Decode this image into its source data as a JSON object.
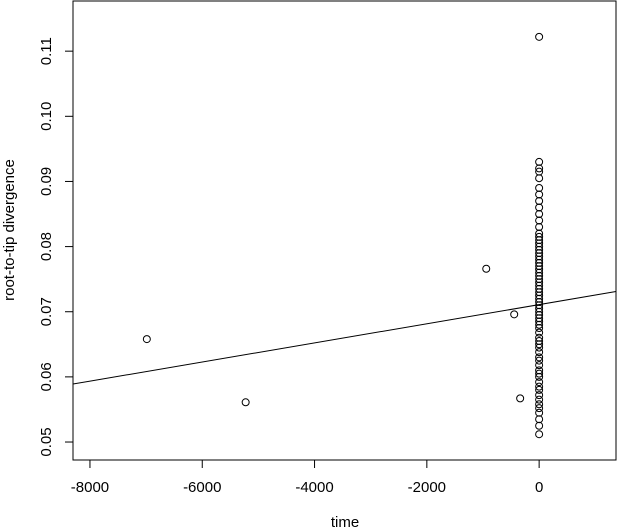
{
  "chart_data": {
    "type": "scatter",
    "x_label": "time",
    "y_label": "root-to-tip divergence",
    "xlim": [
      -8302,
      1369
    ],
    "ylim": [
      0.04724,
      0.1177
    ],
    "xticks": [
      -8000,
      -6000,
      -4000,
      -2000,
      0
    ],
    "yticks": [
      0.05,
      0.06,
      0.07,
      0.08,
      0.09,
      {
        "value": 0.1,
        "label": "0.10"
      },
      0.11
    ],
    "color": "#000000",
    "x": [
      -6987,
      -5227,
      -942,
      -444,
      -338,
      0,
      0,
      0,
      0,
      0,
      0,
      0,
      0,
      0,
      0,
      0,
      0,
      0,
      0,
      0,
      0,
      0,
      0,
      0,
      0,
      0,
      0,
      0,
      0,
      0,
      0,
      0,
      0,
      0,
      0,
      0,
      0,
      0,
      0,
      0,
      0,
      0,
      0,
      0,
      0,
      0,
      0,
      0,
      0,
      0,
      0,
      0,
      0,
      0,
      0,
      0,
      0,
      0,
      0,
      0,
      0,
      0,
      0,
      0,
      0,
      0,
      0,
      0,
      0,
      0
    ],
    "y": [
      0.0658,
      0.0561,
      0.0766,
      0.0696,
      0.0567,
      0.0512,
      0.0525,
      0.0535,
      0.0545,
      0.0552,
      0.0558,
      0.0565,
      0.0572,
      0.058,
      0.0585,
      0.0592,
      0.06,
      0.0605,
      0.061,
      0.0618,
      0.0625,
      0.063,
      0.0638,
      0.0645,
      0.065,
      0.0655,
      0.066,
      0.0668,
      0.0675,
      0.068,
      0.0685,
      0.069,
      0.0695,
      0.07,
      0.0705,
      0.071,
      0.0715,
      0.072,
      0.0725,
      0.073,
      0.0735,
      0.074,
      0.0745,
      0.075,
      0.0755,
      0.076,
      0.0765,
      0.077,
      0.0775,
      0.078,
      0.0785,
      0.079,
      0.0795,
      0.08,
      0.0805,
      0.081,
      0.0815,
      0.082,
      0.083,
      0.084,
      0.085,
      0.086,
      0.087,
      0.088,
      0.089,
      0.0905,
      0.0915,
      0.092,
      0.093,
      0.1122
    ],
    "fit": {
      "x": [
        -8302,
        1369
      ],
      "y": [
        0.0589,
        0.0731
      ]
    }
  }
}
